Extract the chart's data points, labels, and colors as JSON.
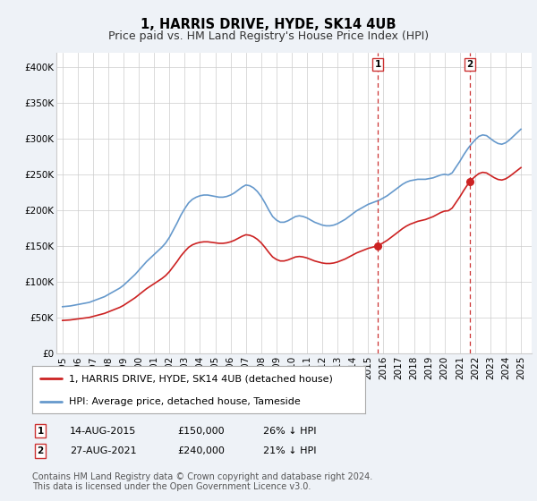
{
  "title": "1, HARRIS DRIVE, HYDE, SK14 4UB",
  "subtitle": "Price paid vs. HM Land Registry's House Price Index (HPI)",
  "ylabel_ticks": [
    "£0",
    "£50K",
    "£100K",
    "£150K",
    "£200K",
    "£250K",
    "£300K",
    "£350K",
    "£400K"
  ],
  "ytick_values": [
    0,
    50000,
    100000,
    150000,
    200000,
    250000,
    300000,
    350000,
    400000
  ],
  "ylim": [
    0,
    420000
  ],
  "xlim_start": 1994.6,
  "xlim_end": 2025.7,
  "sale1_year": 2015.625,
  "sale1_price": 150000,
  "sale1_label": "1",
  "sale1_date": "14-AUG-2015",
  "sale1_pct": "26% ↓ HPI",
  "sale2_year": 2021.666,
  "sale2_price": 240000,
  "sale2_label": "2",
  "sale2_date": "27-AUG-2021",
  "sale2_pct": "21% ↓ HPI",
  "hpi_line_color": "#6699cc",
  "sale_line_color": "#cc2222",
  "vline_color": "#cc3333",
  "dot_color": "#cc2222",
  "background_color": "#eef2f7",
  "plot_bg_color": "#ffffff",
  "grid_color": "#cccccc",
  "legend1_label": "1, HARRIS DRIVE, HYDE, SK14 4UB (detached house)",
  "legend2_label": "HPI: Average price, detached house, Tameside",
  "footnote": "Contains HM Land Registry data © Crown copyright and database right 2024.\nThis data is licensed under the Open Government Licence v3.0.",
  "title_fontsize": 10.5,
  "subtitle_fontsize": 9,
  "tick_fontsize": 7.5,
  "legend_fontsize": 8,
  "footnote_fontsize": 7
}
